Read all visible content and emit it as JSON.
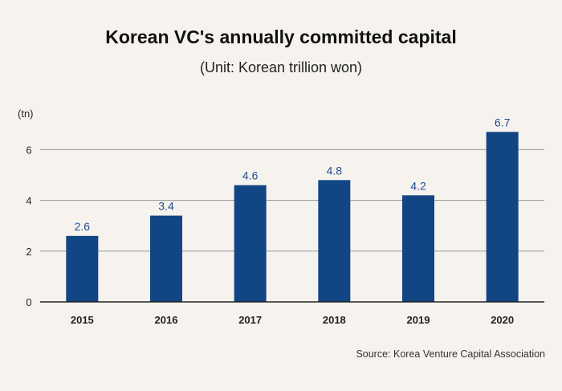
{
  "chart_data": {
    "type": "bar",
    "title": "Korean VC's annually committed capital",
    "subtitle": "(Unit: Korean trillion won)",
    "ylabel": "(tn)",
    "xlabel": "",
    "categories": [
      "2015",
      "2016",
      "2017",
      "2018",
      "2019",
      "2020"
    ],
    "values": [
      2.6,
      3.4,
      4.6,
      4.8,
      4.2,
      6.7
    ],
    "value_labels": [
      "2.6",
      "3.4",
      "4.6",
      "4.8",
      "4.2",
      "6.7"
    ],
    "ylim": [
      0,
      6.7
    ],
    "yticks": [
      0,
      2,
      4,
      6
    ],
    "ytick_labels": [
      "0",
      "2",
      "4",
      "6"
    ],
    "grid": true,
    "legend": "none",
    "bar_color": "#124583",
    "label_color": "#1f4e8c",
    "source": "Source: Korea Venture Capital Association"
  }
}
